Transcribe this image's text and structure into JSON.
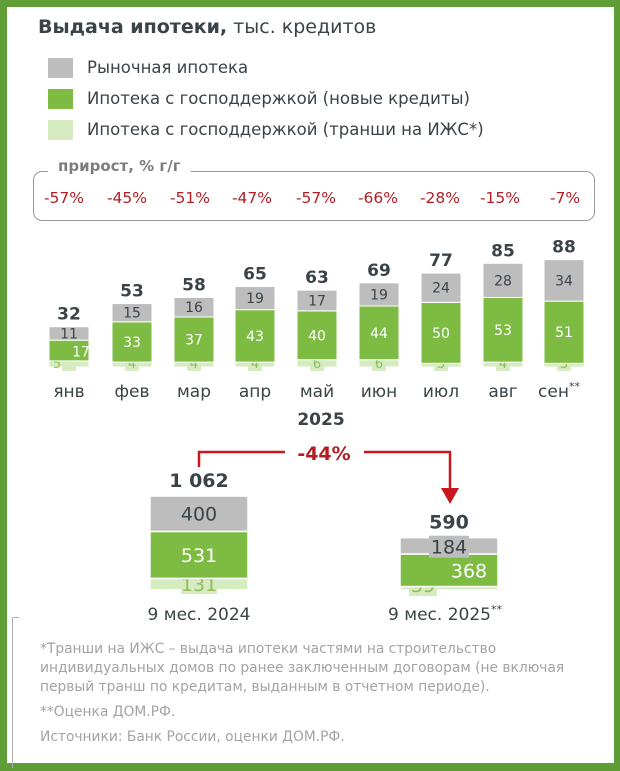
{
  "title": {
    "bold": "Выдача ипотеки,",
    "regular": " тыс. кредитов"
  },
  "legend": [
    {
      "label": "Рыночная ипотека",
      "color": "#bdbdbd"
    },
    {
      "label": "Ипотека с господдержкой (новые кредиты)",
      "color": "#7dbb42"
    },
    {
      "label": "Ипотека с господдержкой (транши на ИЖС*)",
      "color": "#d6ebbf"
    }
  ],
  "growth": {
    "title": "прирост, % г/г",
    "values": [
      "-57%",
      "-45%",
      "-51%",
      "-47%",
      "-57%",
      "-66%",
      "-28%",
      "-15%",
      "-7%"
    ]
  },
  "chart_data": [
    {
      "type": "bar",
      "stacked": true,
      "title": "Выдача ипотеки, тыс. кредитов",
      "xlabel": "2025",
      "categories": [
        "янв",
        "фев",
        "мар",
        "апр",
        "май",
        "июн",
        "июл",
        "авг",
        "сен"
      ],
      "category_suffix": [
        "",
        "",
        "",
        "",
        "",
        "",
        "",
        "",
        "**"
      ],
      "series": [
        {
          "name": "Ипотека с господдержкой (транши на ИЖС*)",
          "values": [
            5,
            4,
            4,
            4,
            6,
            6,
            3,
            4,
            3
          ],
          "color": "#d6ebbf"
        },
        {
          "name": "Ипотека с господдержкой (новые кредиты)",
          "values": [
            17,
            33,
            37,
            43,
            40,
            44,
            50,
            53,
            51
          ],
          "color": "#7dbb42"
        },
        {
          "name": "Рыночная ипотека",
          "values": [
            11,
            15,
            16,
            19,
            17,
            19,
            24,
            28,
            34
          ],
          "color": "#bdbdbd"
        }
      ],
      "totals": [
        "32",
        "53",
        "58",
        "65",
        "63",
        "69",
        "77",
        "85",
        "88"
      ]
    },
    {
      "type": "bar",
      "stacked": true,
      "categories": [
        "9 мес. 2024",
        "9 мес. 2025"
      ],
      "category_suffix": [
        "",
        "**"
      ],
      "series": [
        {
          "name": "Ипотека с господдержкой (транши на ИЖС*)",
          "values": [
            131,
            39
          ],
          "color": "#d6ebbf"
        },
        {
          "name": "Ипотека с господдержкой (новые кредиты)",
          "values": [
            531,
            368
          ],
          "color": "#7dbb42"
        },
        {
          "name": "Рыночная ипотека",
          "values": [
            400,
            184
          ],
          "color": "#bdbdbd"
        }
      ],
      "totals": [
        "1 062",
        "590"
      ],
      "change_annotation": "-44%"
    }
  ],
  "footnotes": {
    "note1": "*Транши на ИЖС – выдача ипотеки частями на строительство индивидуальных домов по ранее заключенным договорам (не включая первый транш по кредитам, выданным в отчетном периоде).",
    "note2": "**Оценка ДОМ.РФ.",
    "sources": "Источники: Банк России, оценки ДОМ.РФ."
  },
  "colors": {
    "border": "#5f9e36",
    "market": "#bdbdbd",
    "state_new": "#7dbb42",
    "state_tranche": "#d6ebbf",
    "negative": "#b01e24",
    "text_dark": "#3a4348"
  }
}
